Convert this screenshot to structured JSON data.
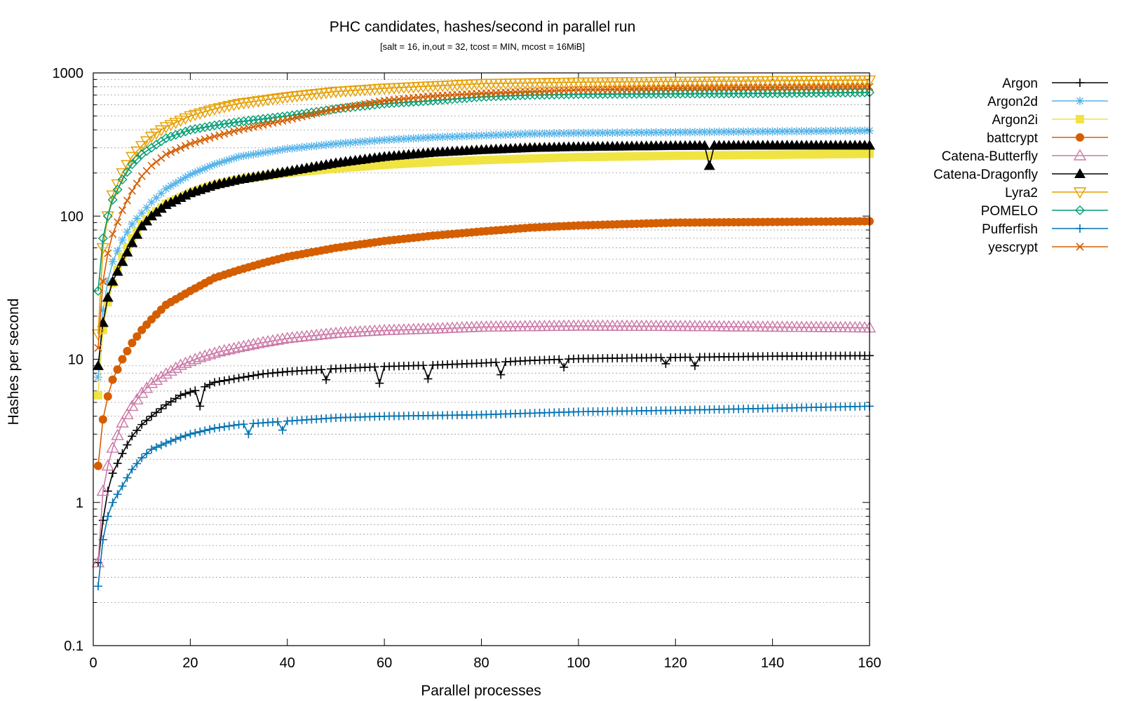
{
  "chart_data": {
    "type": "line",
    "title": "PHC candidates, hashes/second in parallel run",
    "subtitle": "[salt = 16, in,out = 32, tcost = MIN, mcost = 16MiB]",
    "xlabel": "Parallel processes",
    "ylabel": "Hashes per second",
    "xlim": [
      0,
      160
    ],
    "ylim": [
      0.1,
      1000
    ],
    "yscale": "log",
    "xticks": [
      "0",
      "20",
      "40",
      "60",
      "80",
      "100",
      "120",
      "140",
      "160"
    ],
    "yticks": [
      "0.1",
      "1",
      "10",
      "100",
      "1000"
    ],
    "grid": "horizontal minor dashed",
    "legend_position": "right",
    "x_range": [
      1,
      160
    ],
    "series": [
      {
        "name": "Argon",
        "color": "#000000",
        "marker": "plus",
        "anchors": [
          [
            1,
            0.38
          ],
          [
            2,
            0.75
          ],
          [
            3,
            1.2
          ],
          [
            4,
            1.6
          ],
          [
            6,
            2.2
          ],
          [
            8,
            2.9
          ],
          [
            10,
            3.5
          ],
          [
            12,
            4.0
          ],
          [
            15,
            4.8
          ],
          [
            18,
            5.6
          ],
          [
            22,
            6.2
          ],
          [
            25,
            6.9
          ],
          [
            30,
            7.4
          ],
          [
            35,
            7.9
          ],
          [
            40,
            8.2
          ],
          [
            50,
            8.6
          ],
          [
            60,
            8.9
          ],
          [
            70,
            9.1
          ],
          [
            80,
            9.4
          ],
          [
            90,
            9.8
          ],
          [
            100,
            10.1
          ],
          [
            120,
            10.3
          ],
          [
            140,
            10.5
          ],
          [
            160,
            10.6
          ]
        ],
        "dips": [
          [
            22,
            4.7
          ],
          [
            48,
            7.2
          ],
          [
            59,
            6.8
          ],
          [
            69,
            7.3
          ],
          [
            84,
            7.8
          ],
          [
            97,
            8.8
          ],
          [
            118,
            9.3
          ],
          [
            124,
            9.0
          ]
        ]
      },
      {
        "name": "Argon2d",
        "color": "#56b4e9",
        "marker": "star",
        "anchors": [
          [
            1,
            7.5
          ],
          [
            2,
            22
          ],
          [
            3,
            35
          ],
          [
            4,
            48
          ],
          [
            6,
            68
          ],
          [
            8,
            88
          ],
          [
            10,
            105
          ],
          [
            12,
            125
          ],
          [
            15,
            155
          ],
          [
            20,
            195
          ],
          [
            25,
            230
          ],
          [
            30,
            260
          ],
          [
            40,
            295
          ],
          [
            50,
            320
          ],
          [
            60,
            340
          ],
          [
            70,
            355
          ],
          [
            80,
            365
          ],
          [
            90,
            375
          ],
          [
            100,
            380
          ],
          [
            120,
            385
          ],
          [
            140,
            390
          ],
          [
            160,
            395
          ]
        ],
        "dips": []
      },
      {
        "name": "Argon2i",
        "color": "#f0e442",
        "marker": "square",
        "anchors": [
          [
            1,
            5.6
          ],
          [
            2,
            16
          ],
          [
            3,
            25
          ],
          [
            4,
            34
          ],
          [
            6,
            52
          ],
          [
            8,
            70
          ],
          [
            10,
            88
          ],
          [
            12,
            102
          ],
          [
            15,
            122
          ],
          [
            20,
            145
          ],
          [
            25,
            165
          ],
          [
            30,
            180
          ],
          [
            40,
            200
          ],
          [
            50,
            215
          ],
          [
            60,
            228
          ],
          [
            70,
            238
          ],
          [
            80,
            246
          ],
          [
            90,
            252
          ],
          [
            100,
            258
          ],
          [
            120,
            264
          ],
          [
            140,
            268
          ],
          [
            160,
            272
          ]
        ],
        "dips": []
      },
      {
        "name": "battcrypt",
        "color": "#d55e00",
        "marker": "circle",
        "anchors": [
          [
            1,
            1.8
          ],
          [
            2,
            3.8
          ],
          [
            3,
            5.5
          ],
          [
            4,
            7.2
          ],
          [
            6,
            10
          ],
          [
            8,
            13
          ],
          [
            10,
            16
          ],
          [
            12,
            19
          ],
          [
            15,
            24
          ],
          [
            20,
            30
          ],
          [
            25,
            37
          ],
          [
            30,
            42
          ],
          [
            35,
            47
          ],
          [
            40,
            52
          ],
          [
            50,
            60
          ],
          [
            60,
            67
          ],
          [
            70,
            73
          ],
          [
            80,
            78
          ],
          [
            90,
            83
          ],
          [
            100,
            86
          ],
          [
            110,
            88
          ],
          [
            120,
            90
          ],
          [
            140,
            91
          ],
          [
            160,
            92
          ]
        ],
        "dips": []
      },
      {
        "name": "Catena-Butterfly",
        "color": "#cc79a7",
        "marker": "triangle-open",
        "anchors": [
          [
            1,
            0.38
          ],
          [
            2,
            1.2
          ],
          [
            3,
            1.8
          ],
          [
            4,
            2.4
          ],
          [
            6,
            3.6
          ],
          [
            8,
            4.7
          ],
          [
            10,
            5.8
          ],
          [
            12,
            6.8
          ],
          [
            15,
            7.9
          ],
          [
            18,
            9.1
          ],
          [
            22,
            10.3
          ],
          [
            26,
            11.3
          ],
          [
            30,
            12.1
          ],
          [
            35,
            13.1
          ],
          [
            40,
            14.0
          ],
          [
            50,
            15.2
          ],
          [
            60,
            15.9
          ],
          [
            70,
            16.3
          ],
          [
            80,
            16.8
          ],
          [
            100,
            17.1
          ],
          [
            120,
            17.0
          ],
          [
            140,
            16.8
          ],
          [
            160,
            16.6
          ]
        ],
        "dips": []
      },
      {
        "name": "Catena-Dragonfly",
        "color": "#000000",
        "marker": "triangle",
        "anchors": [
          [
            1,
            9
          ],
          [
            2,
            18
          ],
          [
            3,
            27
          ],
          [
            4,
            35
          ],
          [
            6,
            48
          ],
          [
            8,
            65
          ],
          [
            10,
            85
          ],
          [
            12,
            100
          ],
          [
            15,
            120
          ],
          [
            20,
            145
          ],
          [
            25,
            165
          ],
          [
            30,
            180
          ],
          [
            40,
            205
          ],
          [
            50,
            235
          ],
          [
            60,
            260
          ],
          [
            70,
            278
          ],
          [
            80,
            290
          ],
          [
            90,
            300
          ],
          [
            100,
            305
          ],
          [
            120,
            310
          ],
          [
            140,
            312
          ],
          [
            160,
            312
          ]
        ],
        "dips": [
          [
            127,
            225
          ]
        ]
      },
      {
        "name": "Lyra2",
        "color": "#e69f00",
        "marker": "triangle-down-open",
        "anchors": [
          [
            1,
            15
          ],
          [
            2,
            60
          ],
          [
            3,
            100
          ],
          [
            4,
            140
          ],
          [
            6,
            200
          ],
          [
            8,
            260
          ],
          [
            10,
            310
          ],
          [
            12,
            360
          ],
          [
            15,
            420
          ],
          [
            20,
            500
          ],
          [
            25,
            560
          ],
          [
            30,
            610
          ],
          [
            40,
            680
          ],
          [
            50,
            740
          ],
          [
            60,
            780
          ],
          [
            70,
            810
          ],
          [
            80,
            840
          ],
          [
            90,
            850
          ],
          [
            100,
            860
          ],
          [
            120,
            870
          ],
          [
            140,
            880
          ],
          [
            160,
            890
          ]
        ],
        "dips": []
      },
      {
        "name": "POMELO",
        "color": "#009e73",
        "marker": "diamond-open",
        "anchors": [
          [
            1,
            30
          ],
          [
            2,
            70
          ],
          [
            3,
            100
          ],
          [
            4,
            130
          ],
          [
            6,
            180
          ],
          [
            8,
            230
          ],
          [
            10,
            270
          ],
          [
            12,
            300
          ],
          [
            15,
            350
          ],
          [
            20,
            400
          ],
          [
            25,
            430
          ],
          [
            30,
            455
          ],
          [
            40,
            500
          ],
          [
            50,
            560
          ],
          [
            60,
            610
          ],
          [
            70,
            640
          ],
          [
            80,
            680
          ],
          [
            90,
            700
          ],
          [
            100,
            710
          ],
          [
            120,
            715
          ],
          [
            140,
            720
          ],
          [
            160,
            730
          ]
        ],
        "dips": []
      },
      {
        "name": "Pufferfish",
        "color": "#0072b2",
        "marker": "plus",
        "anchors": [
          [
            1,
            0.26
          ],
          [
            2,
            0.55
          ],
          [
            3,
            0.8
          ],
          [
            4,
            1.0
          ],
          [
            6,
            1.3
          ],
          [
            8,
            1.7
          ],
          [
            10,
            2.05
          ],
          [
            12,
            2.35
          ],
          [
            15,
            2.6
          ],
          [
            18,
            2.85
          ],
          [
            20,
            3.0
          ],
          [
            25,
            3.3
          ],
          [
            30,
            3.5
          ],
          [
            35,
            3.6
          ],
          [
            40,
            3.7
          ],
          [
            50,
            3.9
          ],
          [
            60,
            4.0
          ],
          [
            70,
            4.05
          ],
          [
            80,
            4.1
          ],
          [
            90,
            4.2
          ],
          [
            100,
            4.3
          ],
          [
            120,
            4.4
          ],
          [
            140,
            4.55
          ],
          [
            160,
            4.7
          ]
        ],
        "dips": [
          [
            32,
            3.0
          ],
          [
            39,
            3.2
          ]
        ]
      },
      {
        "name": "yescrypt",
        "color": "#d55e00",
        "marker": "x",
        "anchors": [
          [
            1,
            12
          ],
          [
            2,
            35
          ],
          [
            3,
            55
          ],
          [
            4,
            75
          ],
          [
            6,
            110
          ],
          [
            8,
            150
          ],
          [
            10,
            190
          ],
          [
            12,
            225
          ],
          [
            15,
            270
          ],
          [
            20,
            320
          ],
          [
            25,
            360
          ],
          [
            30,
            400
          ],
          [
            40,
            470
          ],
          [
            50,
            560
          ],
          [
            60,
            640
          ],
          [
            70,
            690
          ],
          [
            80,
            720
          ],
          [
            90,
            740
          ],
          [
            100,
            760
          ],
          [
            120,
            780
          ],
          [
            140,
            790
          ],
          [
            160,
            800
          ]
        ],
        "dips": []
      }
    ]
  }
}
